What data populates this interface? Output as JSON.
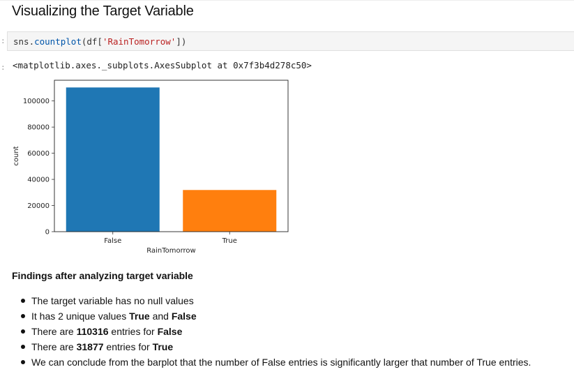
{
  "notebook": {
    "title": "Visualizing the Target Variable",
    "code_cell": {
      "prompt": ":",
      "code_func_prefix": "sns.",
      "code_func": "countplot",
      "code_open": "(df[",
      "code_string": "'RainTomorrow'",
      "code_close": "])"
    },
    "output": {
      "prompt": ":",
      "repr": "<matplotlib.axes._subplots.AxesSubplot at 0x7f3b4d278c50>"
    },
    "findings": {
      "heading": "Findings after analyzing target variable",
      "items": [
        {
          "pre": "The target variable has no null values",
          "b1": "",
          "mid": "",
          "b2": "",
          "post": ""
        },
        {
          "pre": "It has 2 unique values ",
          "b1": "True",
          "mid": " and ",
          "b2": "False",
          "post": ""
        },
        {
          "pre": "There are ",
          "b1": "110316",
          "mid": " entries for ",
          "b2": "False",
          "post": ""
        },
        {
          "pre": "There are ",
          "b1": "31877",
          "mid": " entries for ",
          "b2": "True",
          "post": ""
        },
        {
          "pre": "We can conclude from the barplot that the number of False entries is significantly larger that number of True entries.",
          "b1": "",
          "mid": "",
          "b2": "",
          "post": ""
        }
      ]
    }
  },
  "chart_data": {
    "type": "bar",
    "categories": [
      "False",
      "True"
    ],
    "values": [
      110316,
      31877
    ],
    "colors": [
      "#1f77b4",
      "#ff7f0e"
    ],
    "xlabel": "RainTomorrow",
    "ylabel": "count",
    "yticks": [
      0,
      20000,
      40000,
      60000,
      80000,
      100000
    ],
    "ylim": [
      0,
      115832
    ],
    "grid": false
  }
}
